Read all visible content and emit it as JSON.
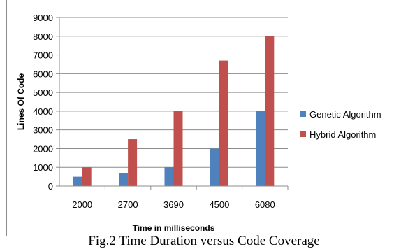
{
  "caption": "Fig.2 Time Duration versus Code Coverage",
  "chart_data": {
    "type": "bar",
    "categories": [
      "2000",
      "2700",
      "3690",
      "4500",
      "6080"
    ],
    "series": [
      {
        "name": "Genetic Algorithm",
        "values": [
          500,
          700,
          1000,
          2000,
          4000
        ],
        "color": "#4f81bd"
      },
      {
        "name": "Hybrid Algorithm",
        "values": [
          1000,
          2500,
          4000,
          6700,
          8000
        ],
        "color": "#c0504d"
      }
    ],
    "xlabel": "Time in milliseconds",
    "ylabel": "Lines Of Code",
    "ylim": [
      0,
      9000
    ],
    "yticks": [
      0,
      1000,
      2000,
      3000,
      4000,
      5000,
      6000,
      7000,
      8000,
      9000
    ],
    "grid": true,
    "legend_position": "right"
  }
}
